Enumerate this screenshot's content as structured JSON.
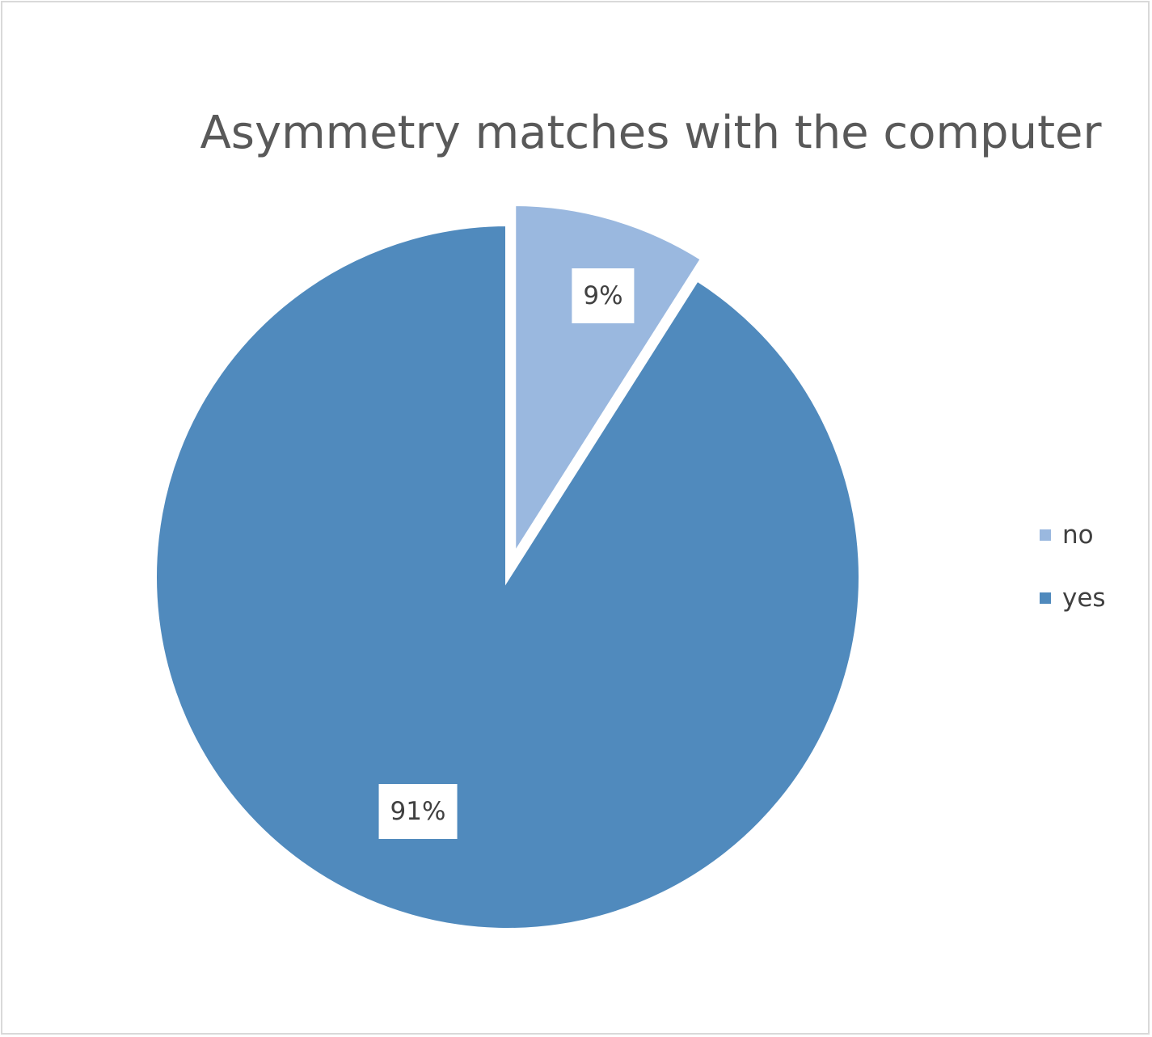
{
  "chart_data": {
    "type": "pie",
    "title": "Asymmetry matches with the computer",
    "categories": [
      "no",
      "yes"
    ],
    "values": [
      9,
      91
    ],
    "data_labels": [
      "9%",
      "91%"
    ],
    "colors": [
      "#9ab8df",
      "#508abd"
    ],
    "exploded": [
      "no"
    ],
    "legend_position": "right",
    "grid": false
  }
}
